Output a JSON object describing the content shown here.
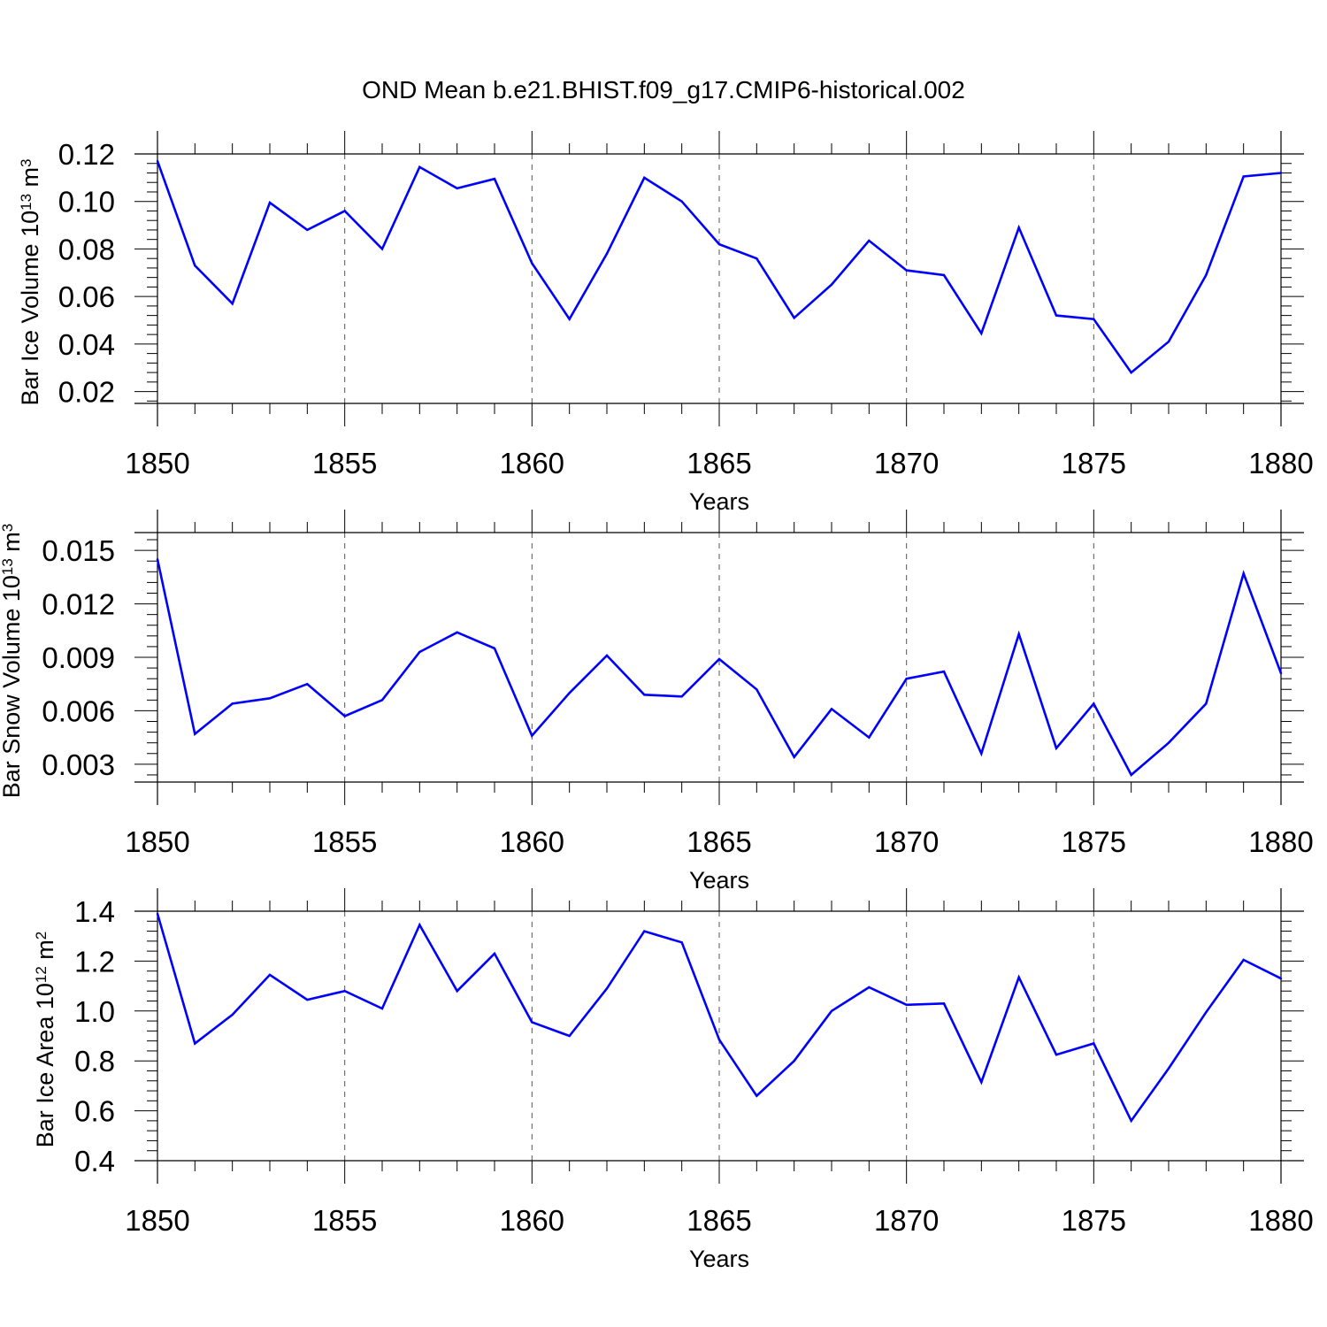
{
  "figure": {
    "title": "OND Mean b.e21.BHIST.f09_g17.CMIP6-historical.002",
    "line_color": "#0000ff"
  },
  "chart_data": [
    {
      "type": "line",
      "xlabel": "Years",
      "ylabel": {
        "prefix": "Bar Ice Volume 10",
        "exponent": "13",
        "unit": " m",
        "unit_exponent": "3"
      },
      "xlim": [
        1850,
        1880
      ],
      "ylim": [
        0.015,
        0.12
      ],
      "xticks": [
        "1850",
        "1855",
        "1860",
        "1865",
        "1870",
        "1875",
        "1880"
      ],
      "yticks": [
        "0.02",
        "0.04",
        "0.06",
        "0.08",
        "0.10",
        "0.12"
      ],
      "ytick_values": [
        0.02,
        0.04,
        0.06,
        0.08,
        0.1,
        0.12
      ],
      "grid": "dashed vertical at major x ticks",
      "x": [
        1850,
        1851,
        1852,
        1853,
        1854,
        1855,
        1856,
        1857,
        1858,
        1859,
        1860,
        1861,
        1862,
        1863,
        1864,
        1865,
        1866,
        1867,
        1868,
        1869,
        1870,
        1871,
        1872,
        1873,
        1874,
        1875,
        1876,
        1877,
        1878,
        1879,
        1880
      ],
      "values": [
        0.117,
        0.073,
        0.057,
        0.0995,
        0.088,
        0.096,
        0.08,
        0.1145,
        0.1055,
        0.1095,
        0.074,
        0.0505,
        0.078,
        0.11,
        0.1,
        0.082,
        0.076,
        0.051,
        0.065,
        0.0835,
        0.071,
        0.069,
        0.0445,
        0.089,
        0.052,
        0.0505,
        0.028,
        0.041,
        0.069,
        0.1105,
        0.112
      ]
    },
    {
      "type": "line",
      "xlabel": "Years",
      "ylabel": {
        "prefix": "Bar Snow Volume 10",
        "exponent": "13",
        "unit": " m",
        "unit_exponent": "3"
      },
      "xlim": [
        1850,
        1880
      ],
      "ylim": [
        0.002,
        0.016
      ],
      "xticks": [
        "1850",
        "1855",
        "1860",
        "1865",
        "1870",
        "1875",
        "1880"
      ],
      "yticks": [
        "0.003",
        "0.006",
        "0.009",
        "0.012",
        "0.015"
      ],
      "ytick_values": [
        0.003,
        0.006,
        0.009,
        0.012,
        0.015
      ],
      "grid": "dashed vertical at major x ticks",
      "x": [
        1850,
        1851,
        1852,
        1853,
        1854,
        1855,
        1856,
        1857,
        1858,
        1859,
        1860,
        1861,
        1862,
        1863,
        1864,
        1865,
        1866,
        1867,
        1868,
        1869,
        1870,
        1871,
        1872,
        1873,
        1874,
        1875,
        1876,
        1877,
        1878,
        1879,
        1880
      ],
      "values": [
        0.0145,
        0.0047,
        0.0064,
        0.0067,
        0.0075,
        0.0057,
        0.0066,
        0.0093,
        0.0104,
        0.0095,
        0.0046,
        0.007,
        0.0091,
        0.0069,
        0.0068,
        0.0089,
        0.0072,
        0.0034,
        0.0061,
        0.0045,
        0.0078,
        0.0082,
        0.0036,
        0.0103,
        0.0039,
        0.0064,
        0.0024,
        0.0042,
        0.0064,
        0.0137,
        0.0081
      ]
    },
    {
      "type": "line",
      "xlabel": "Years",
      "ylabel": {
        "prefix": "Bar Ice Area 10",
        "exponent": "12",
        "unit": " m",
        "unit_exponent": "2"
      },
      "xlim": [
        1850,
        1880
      ],
      "ylim": [
        0.4,
        1.4
      ],
      "xticks": [
        "1850",
        "1855",
        "1860",
        "1865",
        "1870",
        "1875",
        "1880"
      ],
      "yticks": [
        "0.4",
        "0.6",
        "0.8",
        "1.0",
        "1.2",
        "1.4"
      ],
      "ytick_values": [
        0.4,
        0.6,
        0.8,
        1.0,
        1.2,
        1.4
      ],
      "grid": "dashed vertical at major x ticks",
      "x": [
        1850,
        1851,
        1852,
        1853,
        1854,
        1855,
        1856,
        1857,
        1858,
        1859,
        1860,
        1861,
        1862,
        1863,
        1864,
        1865,
        1866,
        1867,
        1868,
        1869,
        1870,
        1871,
        1872,
        1873,
        1874,
        1875,
        1876,
        1877,
        1878,
        1879,
        1880
      ],
      "values": [
        1.39,
        0.87,
        0.985,
        1.145,
        1.045,
        1.08,
        1.01,
        1.345,
        1.08,
        1.23,
        0.955,
        0.9,
        1.09,
        1.32,
        1.275,
        0.885,
        0.66,
        0.8,
        1.0,
        1.095,
        1.025,
        1.03,
        0.715,
        1.135,
        0.825,
        0.87,
        0.56,
        0.77,
        0.995,
        1.205,
        1.13
      ]
    }
  ]
}
